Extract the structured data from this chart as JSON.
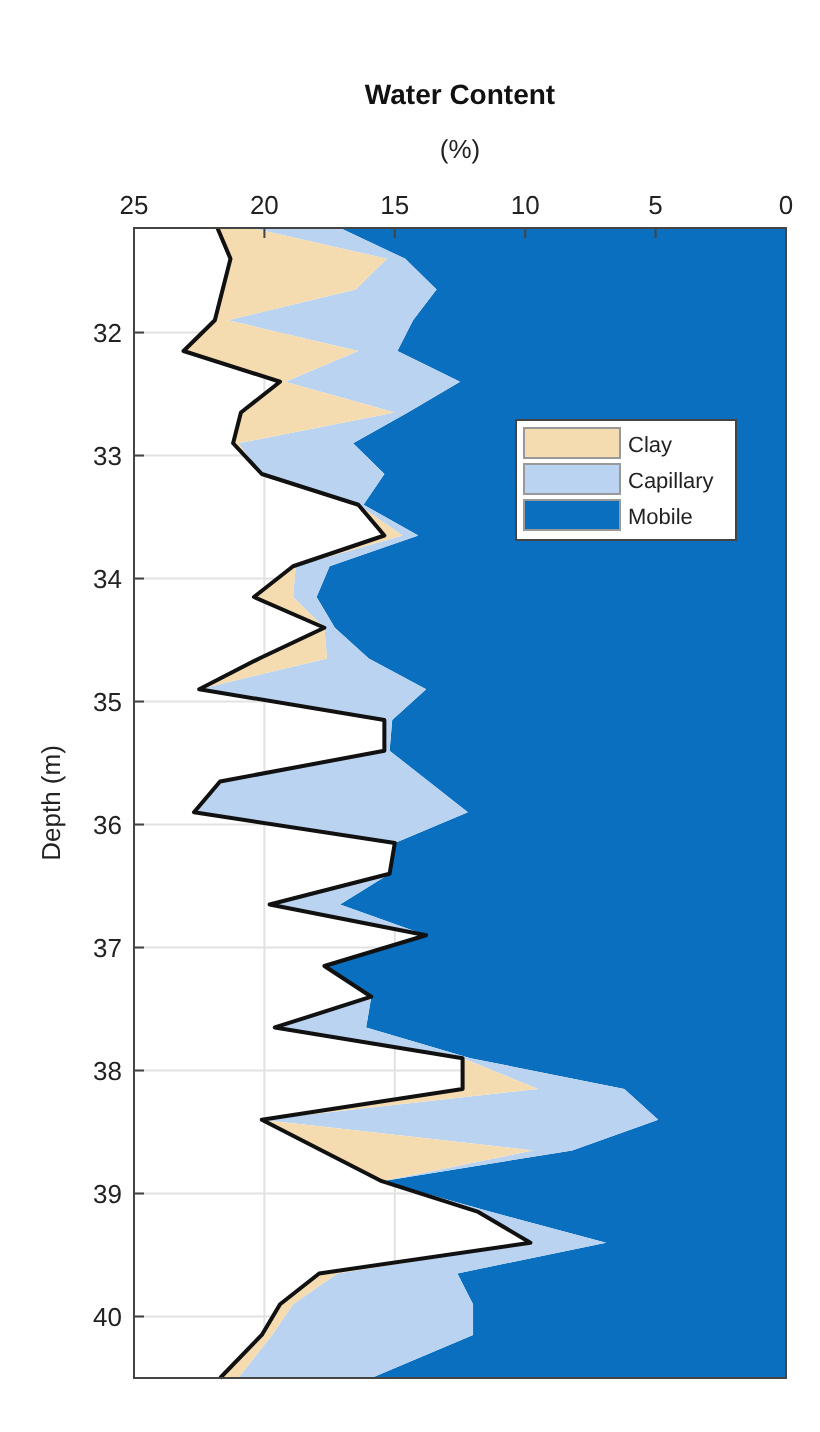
{
  "chart_data": {
    "type": "area",
    "title": "Water Content",
    "xlabel": "(%)",
    "ylabel": "Depth (m)",
    "orientation": "horizontal",
    "stacked": true,
    "x": [
      31.15,
      31.4,
      31.65,
      31.9,
      32.15,
      32.4,
      32.65,
      32.9,
      33.15,
      33.4,
      33.65,
      33.9,
      34.15,
      34.4,
      34.65,
      34.9,
      35.15,
      35.4,
      35.65,
      35.9,
      36.15,
      36.4,
      36.65,
      36.9,
      37.15,
      37.4,
      37.65,
      37.9,
      38.15,
      38.4,
      38.65,
      38.9,
      39.15,
      39.4,
      39.65,
      39.9,
      40.15,
      40.5
    ],
    "series": [
      {
        "name": "Mobile",
        "color": "#0a6fbf",
        "values": [
          17.1,
          14.6,
          13.4,
          14.3,
          14.9,
          12.5,
          14.5,
          16.6,
          15.4,
          16.2,
          14.1,
          17.5,
          18.0,
          17.3,
          16.0,
          13.8,
          15.1,
          15.2,
          13.7,
          12.2,
          15.0,
          15.2,
          17.1,
          13.8,
          17.7,
          15.9,
          16.1,
          12.1,
          6.2,
          4.9,
          8.2,
          15.5,
          11.3,
          6.9,
          12.6,
          12.0,
          12.0,
          15.9
        ]
      },
      {
        "name": "Capillary",
        "color": "#b9d3f0",
        "values": [
          3.4,
          0.7,
          3.1,
          7.1,
          1.5,
          6.7,
          0.5,
          4.4,
          4.7,
          0.2,
          0.6,
          1.3,
          0.9,
          0.4,
          1.6,
          8.7,
          0.3,
          0.2,
          8.0,
          10.5,
          0,
          0,
          2.7,
          0,
          0,
          0,
          3.5,
          0.3,
          3.3,
          15.2,
          1.5,
          0,
          0.5,
          2.9,
          4.6,
          6.9,
          7.7,
          5.1
        ]
      },
      {
        "name": "Clay",
        "color": "#f5dcb0",
        "values": [
          1.3,
          6.0,
          5.1,
          0.5,
          6.7,
          0.2,
          5.9,
          0.2,
          0,
          0,
          0.7,
          0.1,
          1.5,
          0,
          2.6,
          0,
          0,
          0,
          0,
          0,
          0,
          0,
          0,
          0,
          0,
          0,
          0,
          0,
          2.9,
          0,
          8.1,
          0,
          0,
          0,
          0.7,
          0.5,
          0.4,
          0.7
        ]
      }
    ],
    "xlim": [
      25,
      0
    ],
    "xticks": [
      25,
      20,
      15,
      10,
      5,
      0
    ],
    "ylim": [
      40.5,
      31.15
    ],
    "yticks": [
      32,
      33,
      34,
      35,
      36,
      37,
      38,
      39,
      40
    ],
    "grid": true,
    "legend": "right"
  }
}
